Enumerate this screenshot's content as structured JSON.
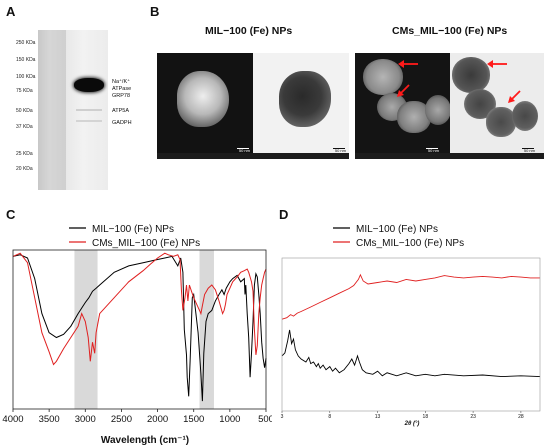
{
  "panel_a": {
    "letter": "A",
    "mw_labels": [
      "250 KDa",
      "150 KDa",
      "100 KDa",
      "75 KDa",
      "50 KDa",
      "37 KDa",
      "25 KDa",
      "20 KDa"
    ],
    "band_labels": [
      "Na⁺/K⁺",
      "ATPase",
      "GRP78",
      "ATP5A",
      "GADPH"
    ]
  },
  "panel_b": {
    "letter": "B",
    "title_left": "MIL−100 (Fe) NPs",
    "title_right": "CMs_MIL−100 (Fe) NPs",
    "scale_labels": [
      "50 nm",
      "50 nm",
      "50 nm",
      "50 nm"
    ]
  },
  "panel_c": {
    "letter": "C",
    "legend": [
      "MIL−100 (Fe) NPs",
      "CMs_MIL−100 (Fe) NPs"
    ],
    "series_colors": [
      "#000000",
      "#e02020"
    ],
    "xlabel": "Wavelength (cm⁻¹)",
    "xticks": [
      "4000",
      "3500",
      "3000",
      "2500",
      "2000",
      "1500",
      "1000",
      "500"
    ]
  },
  "panel_d": {
    "letter": "D",
    "legend": [
      "MIL−100 (Fe) NPs",
      "CMs_MIL−100 (Fe) NPs"
    ],
    "series_colors": [
      "#000000",
      "#e02020"
    ],
    "xlabel": "2θ (°)",
    "xticks": [
      "3",
      "8",
      "13",
      "18",
      "23",
      "28"
    ]
  },
  "chart_data": [
    {
      "type": "line",
      "title": "",
      "xlabel": "Wavelength (cm⁻¹)",
      "ylabel": "",
      "xlim": [
        4000,
        500
      ],
      "x_reversed": true,
      "y_ticks_shown": false,
      "shaded_regions": [
        [
          3150,
          2830
        ],
        [
          1420,
          1220
        ]
      ],
      "series": [
        {
          "name": "MIL−100 (Fe) NPs",
          "color": "#000000",
          "points": [
            [
              4000,
              0.96
            ],
            [
              3900,
              0.97
            ],
            [
              3800,
              0.95
            ],
            [
              3700,
              0.82
            ],
            [
              3600,
              0.6
            ],
            [
              3500,
              0.48
            ],
            [
              3400,
              0.45
            ],
            [
              3300,
              0.47
            ],
            [
              3200,
              0.52
            ],
            [
              3100,
              0.6
            ],
            [
              3000,
              0.67
            ],
            [
              2950,
              0.7
            ],
            [
              2900,
              0.74
            ],
            [
              2850,
              0.76
            ],
            [
              2800,
              0.78
            ],
            [
              2600,
              0.86
            ],
            [
              2400,
              0.9
            ],
            [
              2200,
              0.92
            ],
            [
              2000,
              0.94
            ],
            [
              1900,
              0.95
            ],
            [
              1800,
              0.96
            ],
            [
              1720,
              0.9
            ],
            [
              1680,
              0.95
            ],
            [
              1650,
              0.86
            ],
            [
              1630,
              0.5
            ],
            [
              1600,
              0.34
            ],
            [
              1590,
              0.2
            ],
            [
              1570,
              0.08
            ],
            [
              1550,
              0.3
            ],
            [
              1520,
              0.7
            ],
            [
              1500,
              0.72
            ],
            [
              1470,
              0.6
            ],
            [
              1440,
              0.48
            ],
            [
              1420,
              0.35
            ],
            [
              1400,
              0.22
            ],
            [
              1380,
              0.05
            ],
            [
              1360,
              0.35
            ],
            [
              1330,
              0.55
            ],
            [
              1300,
              0.6
            ],
            [
              1250,
              0.62
            ],
            [
              1200,
              0.68
            ],
            [
              1150,
              0.72
            ],
            [
              1110,
              0.75
            ],
            [
              1080,
              0.72
            ],
            [
              1050,
              0.76
            ],
            [
              1000,
              0.8
            ],
            [
              960,
              0.82
            ],
            [
              900,
              0.84
            ],
            [
              850,
              0.8
            ],
            [
              800,
              0.82
            ],
            [
              790,
              0.72
            ],
            [
              780,
              0.78
            ],
            [
              760,
              0.6
            ],
            [
              740,
              0.45
            ],
            [
              720,
              0.2
            ],
            [
              700,
              0.35
            ],
            [
              680,
              0.55
            ],
            [
              660,
              0.78
            ],
            [
              640,
              0.85
            ],
            [
              620,
              0.83
            ],
            [
              600,
              0.72
            ],
            [
              580,
              0.6
            ],
            [
              560,
              0.42
            ],
            [
              540,
              0.32
            ],
            [
              520,
              0.26
            ],
            [
              500,
              0.32
            ]
          ]
        },
        {
          "name": "CMs_MIL−100 (Fe) NPs",
          "color": "#e02020",
          "points": [
            [
              4000,
              0.96
            ],
            [
              3900,
              0.98
            ],
            [
              3800,
              0.92
            ],
            [
              3700,
              0.7
            ],
            [
              3600,
              0.48
            ],
            [
              3500,
              0.36
            ],
            [
              3440,
              0.28
            ],
            [
              3400,
              0.3
            ],
            [
              3300,
              0.38
            ],
            [
              3200,
              0.45
            ],
            [
              3100,
              0.52
            ],
            [
              3050,
              0.6
            ],
            [
              3000,
              0.55
            ],
            [
              2960,
              0.45
            ],
            [
              2930,
              0.3
            ],
            [
              2900,
              0.42
            ],
            [
              2870,
              0.35
            ],
            [
              2850,
              0.48
            ],
            [
              2800,
              0.6
            ],
            [
              2600,
              0.7
            ],
            [
              2400,
              0.8
            ],
            [
              2200,
              0.87
            ],
            [
              2100,
              0.91
            ],
            [
              2000,
              0.95
            ],
            [
              1900,
              0.98
            ],
            [
              1850,
              0.97
            ],
            [
              1780,
              0.96
            ],
            [
              1720,
              0.97
            ],
            [
              1690,
              0.94
            ],
            [
              1670,
              0.75
            ],
            [
              1650,
              0.62
            ],
            [
              1620,
              0.7
            ],
            [
              1600,
              0.78
            ],
            [
              1580,
              0.68
            ],
            [
              1560,
              0.78
            ],
            [
              1530,
              0.74
            ],
            [
              1500,
              0.7
            ],
            [
              1450,
              0.65
            ],
            [
              1420,
              0.62
            ],
            [
              1400,
              0.6
            ],
            [
              1380,
              0.65
            ],
            [
              1350,
              0.72
            ],
            [
              1300,
              0.76
            ],
            [
              1250,
              0.78
            ],
            [
              1200,
              0.75
            ],
            [
              1150,
              0.68
            ],
            [
              1100,
              0.6
            ],
            [
              1080,
              0.62
            ],
            [
              1060,
              0.66
            ],
            [
              1040,
              0.72
            ],
            [
              1000,
              0.76
            ],
            [
              960,
              0.8
            ],
            [
              900,
              0.83
            ],
            [
              850,
              0.86
            ],
            [
              800,
              0.87
            ],
            [
              760,
              0.88
            ],
            [
              740,
              0.86
            ],
            [
              720,
              0.83
            ],
            [
              700,
              0.8
            ],
            [
              680,
              0.74
            ],
            [
              660,
              0.5
            ],
            [
              640,
              0.34
            ],
            [
              620,
              0.4
            ],
            [
              600,
              0.6
            ],
            [
              580,
              0.7
            ],
            [
              560,
              0.78
            ],
            [
              540,
              0.82
            ],
            [
              520,
              0.86
            ],
            [
              500,
              0.88
            ]
          ]
        }
      ]
    },
    {
      "type": "line",
      "title": "",
      "xlabel": "2θ (°)",
      "ylabel": "",
      "xlim": [
        3,
        30
      ],
      "y_ticks_shown": false,
      "series": [
        {
          "name": "MIL−100 (Fe) NPs",
          "color": "#000000",
          "points": [
            [
              3,
              0.36
            ],
            [
              3.3,
              0.38
            ],
            [
              3.6,
              0.46
            ],
            [
              3.8,
              0.53
            ],
            [
              4.0,
              0.44
            ],
            [
              4.2,
              0.47
            ],
            [
              4.4,
              0.4
            ],
            [
              4.7,
              0.36
            ],
            [
              5.0,
              0.34
            ],
            [
              5.5,
              0.32
            ],
            [
              5.8,
              0.35
            ],
            [
              6.0,
              0.31
            ],
            [
              6.3,
              0.32
            ],
            [
              6.6,
              0.29
            ],
            [
              6.8,
              0.31
            ],
            [
              7.0,
              0.28
            ],
            [
              7.3,
              0.3
            ],
            [
              7.6,
              0.27
            ],
            [
              8.0,
              0.29
            ],
            [
              8.3,
              0.26
            ],
            [
              8.6,
              0.28
            ],
            [
              9.0,
              0.25
            ],
            [
              9.5,
              0.27
            ],
            [
              10.0,
              0.31
            ],
            [
              10.3,
              0.34
            ],
            [
              10.6,
              0.3
            ],
            [
              10.9,
              0.36
            ],
            [
              11.1,
              0.32
            ],
            [
              11.4,
              0.27
            ],
            [
              11.8,
              0.25
            ],
            [
              12.5,
              0.24
            ],
            [
              13.0,
              0.26
            ],
            [
              13.5,
              0.23
            ],
            [
              14.0,
              0.25
            ],
            [
              15.0,
              0.23
            ],
            [
              16.0,
              0.25
            ],
            [
              17.0,
              0.23
            ],
            [
              18.0,
              0.24
            ],
            [
              19.0,
              0.23
            ],
            [
              20.0,
              0.24
            ],
            [
              22.0,
              0.23
            ],
            [
              24.0,
              0.235
            ],
            [
              26.0,
              0.225
            ],
            [
              28.0,
              0.23
            ],
            [
              30.0,
              0.225
            ]
          ]
        },
        {
          "name": "CMs_MIL−100 (Fe) NPs",
          "color": "#e02020",
          "points": [
            [
              3,
              0.6
            ],
            [
              3.5,
              0.61
            ],
            [
              3.9,
              0.63
            ],
            [
              4.2,
              0.62
            ],
            [
              4.6,
              0.64
            ],
            [
              5.0,
              0.65
            ],
            [
              6.0,
              0.68
            ],
            [
              7.0,
              0.71
            ],
            [
              8.0,
              0.74
            ],
            [
              9.0,
              0.77
            ],
            [
              10.0,
              0.8
            ],
            [
              10.5,
              0.82
            ],
            [
              11.0,
              0.86
            ],
            [
              11.2,
              0.89
            ],
            [
              11.5,
              0.85
            ],
            [
              12.0,
              0.83
            ],
            [
              13.0,
              0.84
            ],
            [
              14.0,
              0.85
            ],
            [
              15.0,
              0.84
            ],
            [
              16.0,
              0.86
            ],
            [
              17.0,
              0.85
            ],
            [
              18.0,
              0.86
            ],
            [
              19.0,
              0.87
            ],
            [
              20.0,
              0.885
            ],
            [
              21.0,
              0.875
            ],
            [
              22.0,
              0.87
            ],
            [
              23.0,
              0.875
            ],
            [
              24.0,
              0.88
            ],
            [
              25.0,
              0.875
            ],
            [
              26.0,
              0.87
            ],
            [
              27.0,
              0.88
            ],
            [
              28.0,
              0.875
            ],
            [
              29.0,
              0.87
            ],
            [
              30.0,
              0.87
            ]
          ]
        }
      ]
    }
  ]
}
